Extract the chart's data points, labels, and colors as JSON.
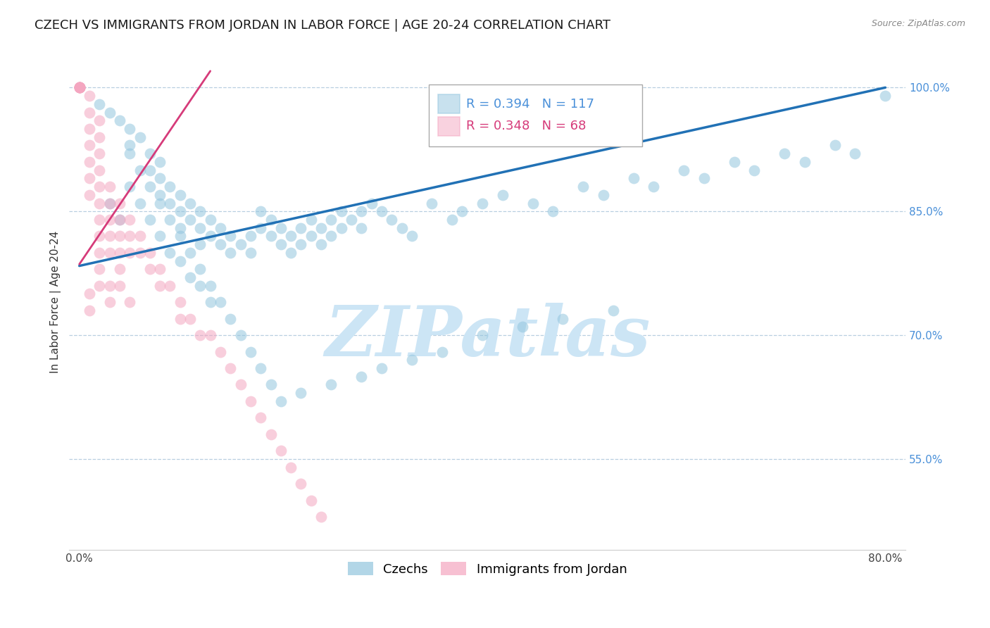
{
  "title": "CZECH VS IMMIGRANTS FROM JORDAN IN LABOR FORCE | AGE 20-24 CORRELATION CHART",
  "source": "Source: ZipAtlas.com",
  "ylabel": "In Labor Force | Age 20-24",
  "ytick_labels": [
    "100.0%",
    "85.0%",
    "70.0%",
    "55.0%"
  ],
  "ytick_values": [
    1.0,
    0.85,
    0.7,
    0.55
  ],
  "ylim": [
    0.44,
    1.04
  ],
  "xlim": [
    -0.01,
    0.82
  ],
  "legend_blue_label": "Czechs",
  "legend_pink_label": "Immigrants from Jordan",
  "blue_R": 0.394,
  "blue_N": 117,
  "pink_R": 0.348,
  "pink_N": 68,
  "blue_color": "#92c5de",
  "pink_color": "#f4a6c0",
  "blue_line_color": "#2171b5",
  "pink_line_color": "#d63b7a",
  "watermark_color": "#cce5f5",
  "title_fontsize": 13,
  "axis_label_fontsize": 11,
  "tick_fontsize": 11,
  "blue_scatter_x": [
    0.02,
    0.03,
    0.04,
    0.05,
    0.05,
    0.06,
    0.07,
    0.07,
    0.08,
    0.08,
    0.08,
    0.09,
    0.09,
    0.1,
    0.1,
    0.1,
    0.11,
    0.11,
    0.12,
    0.12,
    0.12,
    0.13,
    0.13,
    0.14,
    0.14,
    0.15,
    0.15,
    0.16,
    0.17,
    0.17,
    0.18,
    0.18,
    0.19,
    0.19,
    0.2,
    0.2,
    0.21,
    0.21,
    0.22,
    0.22,
    0.23,
    0.23,
    0.24,
    0.24,
    0.25,
    0.25,
    0.26,
    0.26,
    0.27,
    0.28,
    0.28,
    0.29,
    0.3,
    0.31,
    0.32,
    0.33,
    0.35,
    0.37,
    0.38,
    0.4,
    0.42,
    0.45,
    0.47,
    0.5,
    0.52,
    0.55,
    0.57,
    0.6,
    0.62,
    0.65,
    0.67,
    0.7,
    0.72,
    0.75,
    0.77,
    0.8,
    0.03,
    0.04,
    0.05,
    0.06,
    0.07,
    0.08,
    0.09,
    0.1,
    0.11,
    0.12,
    0.13,
    0.05,
    0.06,
    0.07,
    0.08,
    0.09,
    0.1,
    0.11,
    0.12,
    0.13,
    0.14,
    0.15,
    0.16,
    0.17,
    0.18,
    0.19,
    0.2,
    0.22,
    0.25,
    0.28,
    0.3,
    0.33,
    0.36,
    0.4,
    0.44,
    0.48,
    0.53
  ],
  "blue_scatter_y": [
    0.98,
    0.97,
    0.96,
    0.95,
    0.93,
    0.94,
    0.92,
    0.9,
    0.91,
    0.89,
    0.87,
    0.88,
    0.86,
    0.87,
    0.85,
    0.83,
    0.86,
    0.84,
    0.85,
    0.83,
    0.81,
    0.84,
    0.82,
    0.83,
    0.81,
    0.82,
    0.8,
    0.81,
    0.82,
    0.8,
    0.83,
    0.85,
    0.84,
    0.82,
    0.83,
    0.81,
    0.82,
    0.8,
    0.83,
    0.81,
    0.84,
    0.82,
    0.83,
    0.81,
    0.84,
    0.82,
    0.83,
    0.85,
    0.84,
    0.85,
    0.83,
    0.86,
    0.85,
    0.84,
    0.83,
    0.82,
    0.86,
    0.84,
    0.85,
    0.86,
    0.87,
    0.86,
    0.85,
    0.88,
    0.87,
    0.89,
    0.88,
    0.9,
    0.89,
    0.91,
    0.9,
    0.92,
    0.91,
    0.93,
    0.92,
    0.99,
    0.86,
    0.84,
    0.88,
    0.86,
    0.84,
    0.82,
    0.8,
    0.79,
    0.77,
    0.76,
    0.74,
    0.92,
    0.9,
    0.88,
    0.86,
    0.84,
    0.82,
    0.8,
    0.78,
    0.76,
    0.74,
    0.72,
    0.7,
    0.68,
    0.66,
    0.64,
    0.62,
    0.63,
    0.64,
    0.65,
    0.66,
    0.67,
    0.68,
    0.7,
    0.71,
    0.72,
    0.73
  ],
  "pink_scatter_x": [
    0.0,
    0.0,
    0.0,
    0.0,
    0.0,
    0.0,
    0.0,
    0.0,
    0.01,
    0.01,
    0.01,
    0.01,
    0.01,
    0.01,
    0.01,
    0.02,
    0.02,
    0.02,
    0.02,
    0.02,
    0.02,
    0.02,
    0.02,
    0.02,
    0.03,
    0.03,
    0.03,
    0.03,
    0.03,
    0.04,
    0.04,
    0.04,
    0.04,
    0.04,
    0.05,
    0.05,
    0.05,
    0.06,
    0.06,
    0.07,
    0.07,
    0.08,
    0.08,
    0.09,
    0.1,
    0.1,
    0.11,
    0.12,
    0.13,
    0.14,
    0.15,
    0.16,
    0.17,
    0.18,
    0.19,
    0.2,
    0.21,
    0.22,
    0.23,
    0.24,
    0.01,
    0.01,
    0.02,
    0.02,
    0.03,
    0.03,
    0.04,
    0.05
  ],
  "pink_scatter_y": [
    1.0,
    1.0,
    1.0,
    1.0,
    1.0,
    1.0,
    1.0,
    1.0,
    0.99,
    0.97,
    0.95,
    0.93,
    0.91,
    0.89,
    0.87,
    0.96,
    0.94,
    0.92,
    0.9,
    0.88,
    0.86,
    0.84,
    0.82,
    0.8,
    0.88,
    0.86,
    0.84,
    0.82,
    0.8,
    0.86,
    0.84,
    0.82,
    0.8,
    0.78,
    0.84,
    0.82,
    0.8,
    0.82,
    0.8,
    0.8,
    0.78,
    0.78,
    0.76,
    0.76,
    0.74,
    0.72,
    0.72,
    0.7,
    0.7,
    0.68,
    0.66,
    0.64,
    0.62,
    0.6,
    0.58,
    0.56,
    0.54,
    0.52,
    0.5,
    0.48,
    0.75,
    0.73,
    0.78,
    0.76,
    0.76,
    0.74,
    0.76,
    0.74
  ],
  "blue_trendline_x": [
    0.0,
    0.8
  ],
  "blue_trendline_y": [
    0.784,
    1.0
  ],
  "pink_trendline_x": [
    0.0,
    0.13
  ],
  "pink_trendline_y": [
    0.786,
    1.02
  ]
}
